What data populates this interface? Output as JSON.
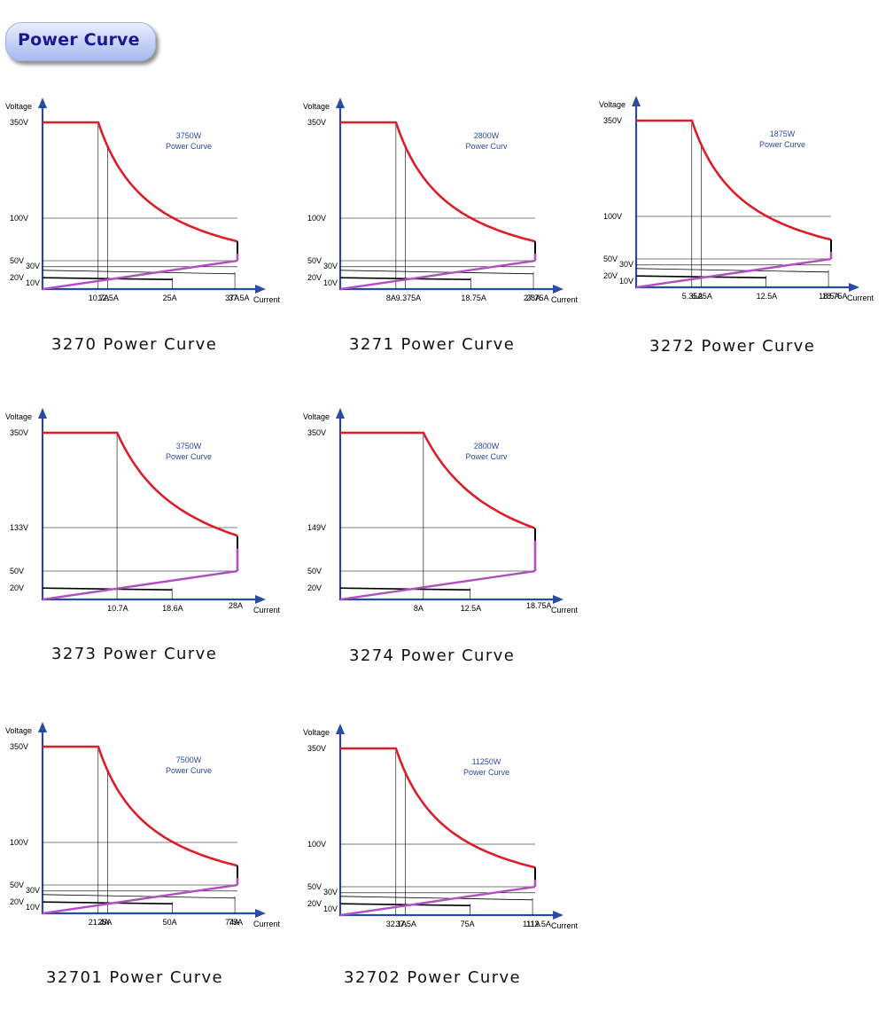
{
  "header": {
    "title": "Power Curve"
  },
  "colors": {
    "axis": "#2a4aa8",
    "power_curve": "#dc1e2b",
    "min_voltage_line": "#b04fc0",
    "power_label": "#2a4aa8",
    "grid": "#000000"
  },
  "chart_data": [
    {
      "type": "line",
      "model": "3270",
      "caption": "3270 Power Curve",
      "power_label": "3750W",
      "curve_label": "Power Curve",
      "xlabel": "Current",
      "ylabel": "Voltage",
      "power_w": 3750,
      "v_max": 350,
      "v_min": 100,
      "i_max": 37.5,
      "y_ticks": [
        {
          "label": "350V",
          "v": 350
        },
        {
          "label": "100V",
          "v": 100
        },
        {
          "label": "50V",
          "v": 50
        },
        {
          "label": "30V",
          "v": 30
        },
        {
          "label": "20V",
          "v": 20
        },
        {
          "label": "10V",
          "v": 10
        }
      ],
      "x_ticks": [
        {
          "label": "10.7A",
          "i": 10.7
        },
        {
          "label": "12.5A",
          "i": 12.5
        },
        {
          "label": "25A",
          "i": 25
        },
        {
          "label": "37A",
          "i": 37
        },
        {
          "label": "37.5A",
          "i": 37.5
        }
      ]
    },
    {
      "type": "line",
      "model": "3271",
      "caption": "3271 Power Curve",
      "power_label": "2800W",
      "curve_label": "Power Curv",
      "xlabel": "Current",
      "ylabel": "Voltage",
      "power_w": 2800,
      "v_max": 350,
      "v_min": 100,
      "i_max": 28,
      "y_ticks": [
        {
          "label": "350V",
          "v": 350
        },
        {
          "label": "100V",
          "v": 100
        },
        {
          "label": "50V",
          "v": 50
        },
        {
          "label": "30V",
          "v": 30
        },
        {
          "label": "20V",
          "v": 20
        },
        {
          "label": "10V",
          "v": 10
        }
      ],
      "x_ticks": [
        {
          "label": "8A",
          "i": 8
        },
        {
          "label": "9.375A",
          "i": 9.375
        },
        {
          "label": "18.75A",
          "i": 18.75
        },
        {
          "label": "27.75A",
          "i": 27.75
        },
        {
          "label": "28A",
          "i": 28
        }
      ]
    },
    {
      "type": "line",
      "model": "3272",
      "caption": "3272 Power Curve",
      "power_label": "1875W",
      "curve_label": "Power Curve",
      "xlabel": "Current",
      "ylabel": "Voltage",
      "power_w": 1875,
      "v_max": 350,
      "v_min": 100,
      "i_max": 18.75,
      "y_ticks": [
        {
          "label": "350V",
          "v": 350
        },
        {
          "label": "100V",
          "v": 100
        },
        {
          "label": "50V",
          "v": 50
        },
        {
          "label": "30V",
          "v": 30
        },
        {
          "label": "20V",
          "v": 20
        },
        {
          "label": "10V",
          "v": 10
        }
      ],
      "x_ticks": [
        {
          "label": "5.35A",
          "i": 5.35
        },
        {
          "label": "6.25A",
          "i": 6.25
        },
        {
          "label": "12.5A",
          "i": 12.5
        },
        {
          "label": "18.5A",
          "i": 18.5
        },
        {
          "label": "18.75A",
          "i": 18.75
        }
      ]
    },
    {
      "type": "line",
      "model": "3273",
      "caption": "3273 Power Curve",
      "power_label": "3750W",
      "curve_label": "Power Curve",
      "xlabel": "Current",
      "ylabel": "Voltage",
      "power_w": 3750,
      "v_max": 350,
      "v_min": 133,
      "i_max": 28,
      "y_ticks": [
        {
          "label": "350V",
          "v": 350
        },
        {
          "label": "133V",
          "v": 133
        },
        {
          "label": "50V",
          "v": 50
        },
        {
          "label": "20V",
          "v": 20
        }
      ],
      "x_ticks": [
        {
          "label": "10.7A",
          "i": 10.7
        },
        {
          "label": "18.6A",
          "i": 18.6
        },
        {
          "label": "28A",
          "i": 28
        }
      ]
    },
    {
      "type": "line",
      "model": "3274",
      "caption": "3274 Power Curve",
      "power_label": "2800W",
      "curve_label": "Power Curv",
      "xlabel": "Current",
      "ylabel": "Voltage",
      "power_w": 2800,
      "v_max": 350,
      "v_min": 149,
      "i_max": 18.75,
      "y_ticks": [
        {
          "label": "350V",
          "v": 350
        },
        {
          "label": "149V",
          "v": 149
        },
        {
          "label": "50V",
          "v": 50
        },
        {
          "label": "20V",
          "v": 20
        }
      ],
      "x_ticks": [
        {
          "label": "8A",
          "i": 8
        },
        {
          "label": "12.5A",
          "i": 12.5
        },
        {
          "label": "18.75A",
          "i": 18.75
        }
      ]
    },
    {
      "type": "line",
      "model": "32701",
      "caption": "32701 Power Curve",
      "power_label": "7500W",
      "curve_label": "Power Curve",
      "xlabel": "Current",
      "ylabel": "Voltage",
      "power_w": 7500,
      "v_max": 350,
      "v_min": 100,
      "i_max": 75,
      "y_ticks": [
        {
          "label": "350V",
          "v": 350
        },
        {
          "label": "100V",
          "v": 100
        },
        {
          "label": "50V",
          "v": 50
        },
        {
          "label": "30V",
          "v": 30
        },
        {
          "label": "20V",
          "v": 20
        },
        {
          "label": "10V",
          "v": 10
        }
      ],
      "x_ticks": [
        {
          "label": "21.4A",
          "i": 21.4
        },
        {
          "label": "25A",
          "i": 25
        },
        {
          "label": "50A",
          "i": 50
        },
        {
          "label": "74A",
          "i": 74
        },
        {
          "label": "75A",
          "i": 75
        }
      ]
    },
    {
      "type": "line",
      "model": "32702",
      "caption": "32702 Power Curve",
      "power_label": "11250W",
      "curve_label": "Power Curve",
      "xlabel": "Current",
      "ylabel": "Voltage",
      "power_w": 11250,
      "v_max": 350,
      "v_min": 100,
      "i_max": 112.5,
      "y_ticks": [
        {
          "label": "350V",
          "v": 350
        },
        {
          "label": "100V",
          "v": 100
        },
        {
          "label": "50V",
          "v": 50
        },
        {
          "label": "30V",
          "v": 30
        },
        {
          "label": "20V",
          "v": 20
        },
        {
          "label": "10V",
          "v": 10
        }
      ],
      "x_ticks": [
        {
          "label": "32.1A",
          "i": 32.1
        },
        {
          "label": "37.5A",
          "i": 37.5
        },
        {
          "label": "75A",
          "i": 75
        },
        {
          "label": "111A",
          "i": 111
        },
        {
          "label": "112.5A",
          "i": 112.5
        }
      ]
    }
  ]
}
